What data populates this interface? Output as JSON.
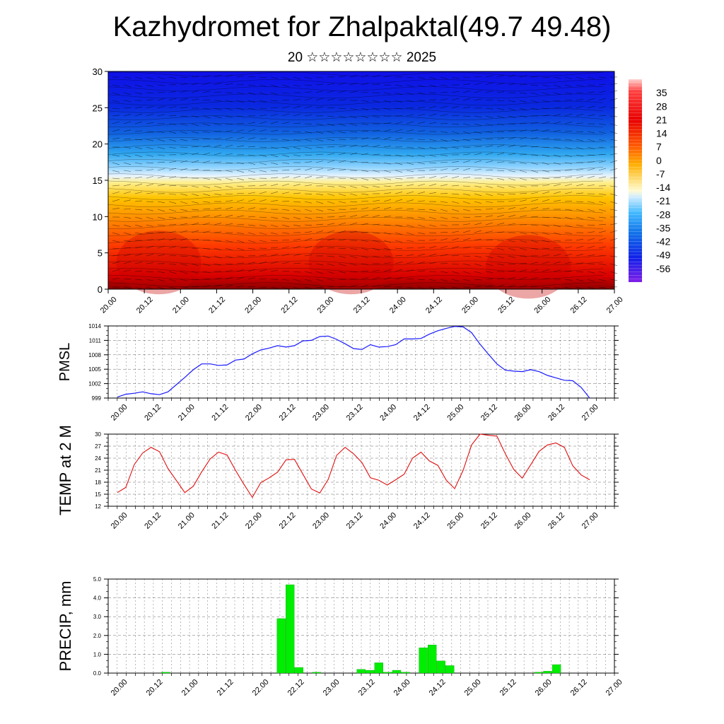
{
  "title": "Kazhydromet for Zhalpaktal(49.7 49.48)",
  "subtitle": "20 ☆☆☆☆☆☆☆☆ 2025",
  "colors": {
    "pmsl_line": "#1a1aff",
    "temp_line": "#e01010",
    "precip_bar": "#00ee00",
    "precip_bar_edge": "#008800"
  },
  "chart_data": [
    {
      "type": "heatmap",
      "name": "cross-section",
      "x_ticks": [
        "20.00",
        "20.12",
        "21.00",
        "21.12",
        "22.00",
        "22.12",
        "23.00",
        "23.12",
        "24.00",
        "24.12",
        "25.00",
        "25.12",
        "26.00",
        "26.12",
        "27.00"
      ],
      "y_ticks": [
        "0",
        "5",
        "10",
        "15",
        "20",
        "25",
        "30"
      ],
      "ylim": [
        0,
        30
      ],
      "colorbar_labels": [
        "35",
        "28",
        "21",
        "14",
        "7",
        "0",
        "-7",
        "-14",
        "-21",
        "-28",
        "-35",
        "-42",
        "-49",
        "-56"
      ],
      "colorbar_range": [
        -63,
        42
      ]
    },
    {
      "type": "line",
      "name": "pmsl",
      "ylabel": "PMSL",
      "x_ticks": [
        "20.00",
        "20.12",
        "21.00",
        "21.12",
        "22.00",
        "22.12",
        "23.00",
        "23.12",
        "24.00",
        "24.12",
        "25.00",
        "25.12",
        "26.00",
        "26.12",
        "27.00"
      ],
      "y_ticks": [
        "999",
        "1002",
        "1005",
        "1008",
        "1011",
        "1014"
      ],
      "ylim": [
        999,
        1014
      ],
      "values": [
        999.2,
        999.8,
        1000.0,
        1000.3,
        999.9,
        999.7,
        1000.3,
        1001.8,
        1003.3,
        1004.9,
        1006.1,
        1006.1,
        1005.8,
        1005.9,
        1006.9,
        1007.1,
        1008.2,
        1009.0,
        1009.4,
        1009.9,
        1009.6,
        1009.9,
        1010.9,
        1011.0,
        1011.8,
        1011.9,
        1011.2,
        1010.3,
        1009.3,
        1009.1,
        1010.1,
        1009.6,
        1009.7,
        1010.1,
        1011.3,
        1011.3,
        1011.4,
        1012.3,
        1013.0,
        1013.5,
        1013.9,
        1013.8,
        1012.6,
        1010.2,
        1008.1,
        1006.1,
        1004.8,
        1004.6,
        1004.5,
        1004.9,
        1004.5,
        1003.7,
        1003.2,
        1002.7,
        1002.6,
        1001.2,
        999.0
      ]
    },
    {
      "type": "line",
      "name": "temp2m",
      "ylabel": "TEMP at 2 M",
      "x_ticks": [
        "20.00",
        "20.12",
        "21.00",
        "21.12",
        "22.00",
        "22.12",
        "23.00",
        "23.12",
        "24.00",
        "24.12",
        "25.00",
        "25.12",
        "26.00",
        "26.12",
        "27.00"
      ],
      "y_ticks": [
        "12",
        "15",
        "18",
        "21",
        "24",
        "27",
        "30"
      ],
      "ylim": [
        12,
        30
      ],
      "values": [
        15.4,
        16.7,
        22.4,
        25.3,
        26.7,
        25.6,
        21.4,
        18.4,
        15.4,
        17.0,
        20.6,
        23.8,
        25.5,
        24.8,
        21.0,
        17.5,
        14.2,
        17.9,
        19.1,
        20.5,
        23.6,
        23.7,
        20.0,
        16.3,
        15.3,
        18.7,
        24.7,
        26.7,
        25.1,
        22.9,
        19.1,
        18.5,
        17.3,
        18.6,
        20.0,
        24.0,
        25.5,
        23.3,
        22.2,
        18.5,
        16.4,
        21.0,
        27.3,
        30.0,
        29.7,
        29.5,
        25.1,
        21.2,
        19.0,
        22.3,
        25.7,
        27.3,
        27.8,
        26.7,
        22.1,
        19.8,
        18.6
      ]
    },
    {
      "type": "bar",
      "name": "precip",
      "ylabel": "PRECIP, mm",
      "x_ticks": [
        "20.00",
        "20.12",
        "21.00",
        "21.12",
        "22.00",
        "22.12",
        "23.00",
        "23.12",
        "24.00",
        "24.12",
        "25.00",
        "25.12",
        "26.00",
        "26.12",
        "27.00"
      ],
      "y_ticks": [
        "0.0",
        "1.0",
        "2.0",
        "3.0",
        "4.0",
        "5.0"
      ],
      "ylim": [
        0,
        5
      ],
      "values": [
        0,
        0,
        0,
        0,
        0,
        0,
        0.05,
        0,
        0,
        0,
        0,
        0,
        0,
        0,
        0,
        0,
        0,
        0,
        0,
        2.9,
        4.7,
        0.3,
        0,
        0.05,
        0,
        0,
        0,
        0,
        0.2,
        0.15,
        0.55,
        0.05,
        0.15,
        0.05,
        0,
        1.35,
        1.5,
        0.65,
        0.4,
        0,
        0,
        0,
        0,
        0,
        0,
        0,
        0,
        0,
        0.05,
        0.1,
        0.45,
        0,
        0,
        0,
        0,
        0,
        0
      ]
    }
  ]
}
